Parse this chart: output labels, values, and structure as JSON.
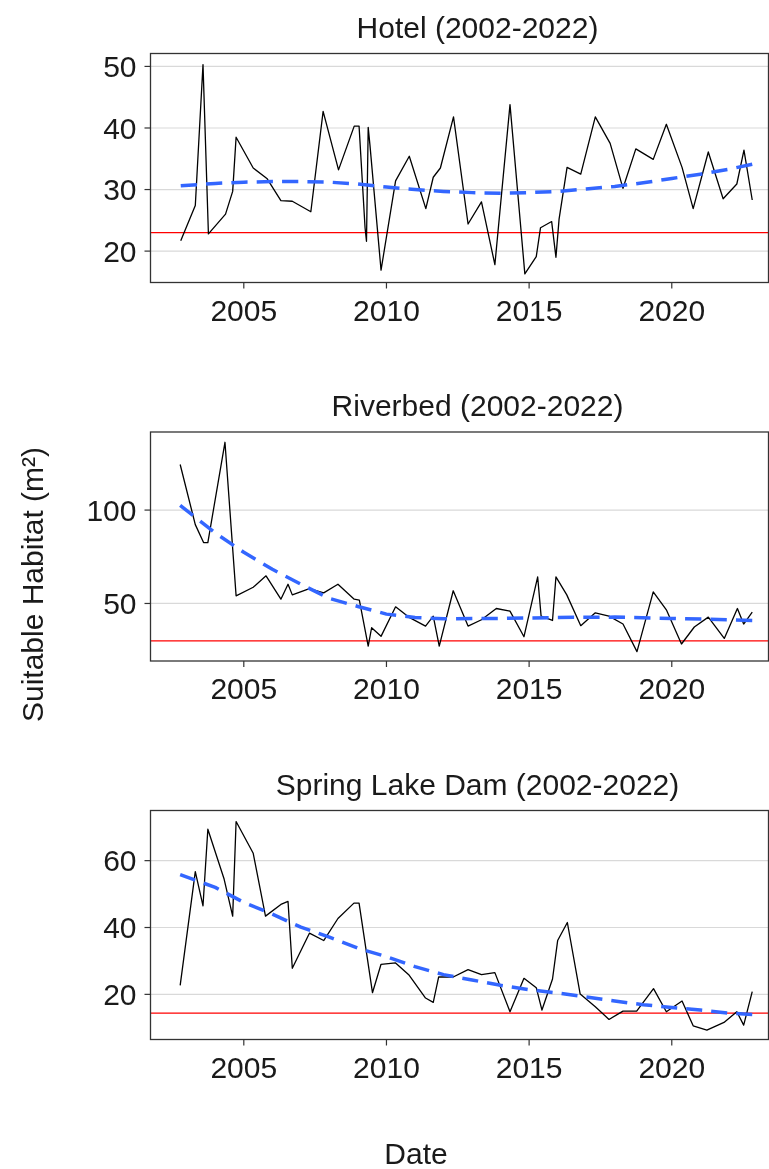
{
  "chart_data": [
    {
      "type": "line",
      "title": "Hotel (2002-2022)",
      "xlim": [
        2001.73,
        2023.39
      ],
      "xticks": [
        2005,
        2010,
        2015,
        2020
      ],
      "ylim": [
        14.9,
        52.1
      ],
      "yticks": [
        20,
        30,
        40,
        50
      ],
      "grid": "y",
      "series": [
        {
          "color": "#000000",
          "line_style": "solid",
          "x": [
            2002.79,
            2003.3,
            2003.57,
            2003.76,
            2004.36,
            2004.61,
            2004.73,
            2005.33,
            2005.81,
            2006.3,
            2006.7,
            2007.35,
            2007.78,
            2008.32,
            2008.87,
            2009.04,
            2009.25,
            2009.3,
            2009.36,
            2009.42,
            2009.81,
            2010.32,
            2010.8,
            2011.38,
            2011.64,
            2011.89,
            2012.35,
            2012.86,
            2013.33,
            2013.8,
            2014.33,
            2014.85,
            2015.25,
            2015.4,
            2015.79,
            2015.94,
            2016.05,
            2016.33,
            2016.81,
            2017.32,
            2017.84,
            2018.29,
            2018.74,
            2019.35,
            2019.81,
            2020.36,
            2020.75,
            2021.28,
            2021.8,
            2022.28,
            2022.53,
            2022.82
          ],
          "values": [
            21.7,
            27.4,
            50.3,
            22.8,
            26.0,
            29.7,
            38.5,
            33.5,
            31.8,
            28.2,
            28.1,
            26.4,
            42.7,
            33.2,
            40.3,
            40.3,
            23.8,
            21.6,
            40.1,
            37.3,
            16.9,
            31.4,
            35.4,
            26.9,
            32.0,
            33.5,
            41.8,
            24.4,
            28.0,
            17.8,
            43.8,
            16.3,
            19.1,
            23.8,
            24.8,
            19.0,
            25.2,
            33.6,
            32.5,
            41.8,
            37.5,
            30.2,
            36.6,
            34.9,
            40.6,
            33.6,
            26.9,
            36.1,
            28.5,
            30.9,
            36.4,
            28.3
          ]
        },
        {
          "type": "line",
          "color": "#3366ff",
          "line_style": "dashed",
          "x": [
            2002.79,
            2004,
            2005,
            2006,
            2007,
            2008,
            2009,
            2010,
            2011,
            2012,
            2013,
            2014,
            2015,
            2016,
            2017,
            2018,
            2019,
            2020,
            2021,
            2022,
            2022.82
          ],
          "values": [
            30.6,
            31.0,
            31.2,
            31.3,
            31.3,
            31.2,
            30.9,
            30.4,
            30.0,
            29.7,
            29.5,
            29.4,
            29.5,
            29.7,
            30.1,
            30.5,
            31.1,
            31.8,
            32.5,
            33.3,
            34.1
          ]
        }
      ],
      "ref_lines": [
        {
          "axis": "y",
          "value": 23,
          "color": "#ff0000"
        }
      ]
    },
    {
      "type": "line",
      "title": "Riverbed (2002-2022)",
      "ylabel": "Suitable Habitat (m²)",
      "xlim": [
        2001.73,
        2023.39
      ],
      "xticks": [
        2005,
        2010,
        2015,
        2020
      ],
      "ylim": [
        19.2,
        141.8
      ],
      "yticks": [
        50,
        100
      ],
      "grid": "y",
      "series": [
        {
          "color": "#000000",
          "line_style": "solid",
          "x": [
            2002.77,
            2003.3,
            2003.59,
            2003.74,
            2004.34,
            2004.73,
            2005.33,
            2005.78,
            2006.3,
            2006.55,
            2006.7,
            2007.3,
            2007.8,
            2008.3,
            2008.87,
            2009.05,
            2009.36,
            2009.48,
            2009.81,
            2010.32,
            2010.78,
            2011.37,
            2011.64,
            2011.85,
            2012.34,
            2012.86,
            2013.33,
            2013.85,
            2014.33,
            2014.82,
            2015.3,
            2015.42,
            2015.82,
            2015.94,
            2016.32,
            2016.81,
            2017.32,
            2017.8,
            2018.29,
            2018.78,
            2019.35,
            2019.81,
            2020.34,
            2020.79,
            2021.28,
            2021.84,
            2022.3,
            2022.52,
            2022.82
          ],
          "values": [
            124.4,
            92.2,
            82.6,
            82.6,
            136.3,
            54.1,
            58.7,
            64.8,
            52.3,
            60.3,
            54.6,
            58.0,
            55.7,
            60.3,
            52.3,
            51.8,
            27.2,
            37.0,
            32.4,
            48.2,
            42.7,
            37.9,
            43.2,
            27.2,
            56.8,
            37.9,
            41.3,
            47.3,
            45.9,
            32.2,
            64.2,
            43.2,
            40.9,
            64.2,
            54.6,
            38.1,
            45.0,
            43.2,
            39.0,
            24.2,
            56.2,
            46.6,
            28.3,
            37.4,
            42.7,
            31.3,
            47.3,
            39.0,
            45.4
          ]
        },
        {
          "type": "line",
          "color": "#3366ff",
          "line_style": "dashed",
          "x": [
            2002.77,
            2004,
            2005,
            2006,
            2007,
            2008,
            2009,
            2010,
            2011,
            2012,
            2014,
            2016,
            2018,
            2020,
            2022,
            2022.82
          ],
          "values": [
            102.5,
            87.7,
            77.4,
            68.3,
            60.3,
            52.7,
            48.4,
            44.3,
            42.5,
            41.8,
            42.0,
            42.5,
            42.7,
            42.0,
            41.3,
            40.9
          ]
        }
      ],
      "ref_lines": [
        {
          "axis": "y",
          "value": 30,
          "color": "#ff0000"
        }
      ]
    },
    {
      "type": "line",
      "title": "Spring Lake Dam (2002-2022)",
      "xlabel": "Date",
      "xlim": [
        2001.73,
        2023.39
      ],
      "xticks": [
        2005,
        2010,
        2015,
        2020
      ],
      "ylim": [
        6.5,
        75.0
      ],
      "yticks": [
        20,
        40,
        60
      ],
      "grid": "y",
      "series": [
        {
          "color": "#000000",
          "line_style": "solid",
          "x": [
            2002.77,
            2003.3,
            2003.57,
            2003.74,
            2004.31,
            2004.61,
            2004.73,
            2005.33,
            2005.76,
            2006.3,
            2006.55,
            2006.7,
            2007.3,
            2007.8,
            2008.3,
            2008.86,
            2009.04,
            2009.51,
            2009.81,
            2010.32,
            2010.78,
            2011.37,
            2011.64,
            2011.83,
            2012.34,
            2012.86,
            2013.33,
            2013.8,
            2014.33,
            2014.82,
            2015.25,
            2015.45,
            2015.82,
            2016.0,
            2016.34,
            2016.79,
            2017.32,
            2017.8,
            2018.29,
            2018.77,
            2019.36,
            2019.81,
            2020.36,
            2020.75,
            2021.23,
            2021.83,
            2022.28,
            2022.52,
            2022.82
          ],
          "values": [
            22.7,
            56.7,
            46.5,
            69.4,
            54.5,
            43.4,
            71.7,
            62.2,
            43.4,
            46.9,
            47.8,
            27.8,
            38.3,
            36.1,
            42.7,
            47.3,
            47.3,
            20.5,
            29.0,
            29.4,
            25.9,
            18.9,
            17.6,
            25.2,
            25.2,
            27.4,
            25.9,
            26.5,
            14.8,
            24.8,
            22.0,
            15.3,
            24.6,
            36.1,
            41.5,
            20.1,
            16.3,
            12.5,
            15.0,
            15.0,
            21.7,
            14.8,
            18.0,
            10.6,
            9.3,
            11.6,
            14.8,
            10.8,
            20.8
          ]
        },
        {
          "type": "line",
          "color": "#3366ff",
          "line_style": "dashed",
          "x": [
            2002.77,
            2004,
            2005,
            2006,
            2007,
            2008,
            2009,
            2010,
            2011,
            2012,
            2013,
            2014,
            2015,
            2016,
            2017,
            2018,
            2019,
            2020,
            2021,
            2022,
            2022.82
          ],
          "values": [
            55.8,
            52.0,
            47.5,
            44.0,
            40.1,
            37.1,
            33.8,
            31.3,
            28.3,
            25.9,
            24.3,
            22.7,
            21.4,
            20.4,
            19.2,
            18.0,
            16.9,
            16.1,
            15.3,
            14.4,
            14.0
          ]
        }
      ],
      "ref_lines": [
        {
          "axis": "y",
          "value": 14.4,
          "color": "#ff0000"
        }
      ]
    }
  ]
}
